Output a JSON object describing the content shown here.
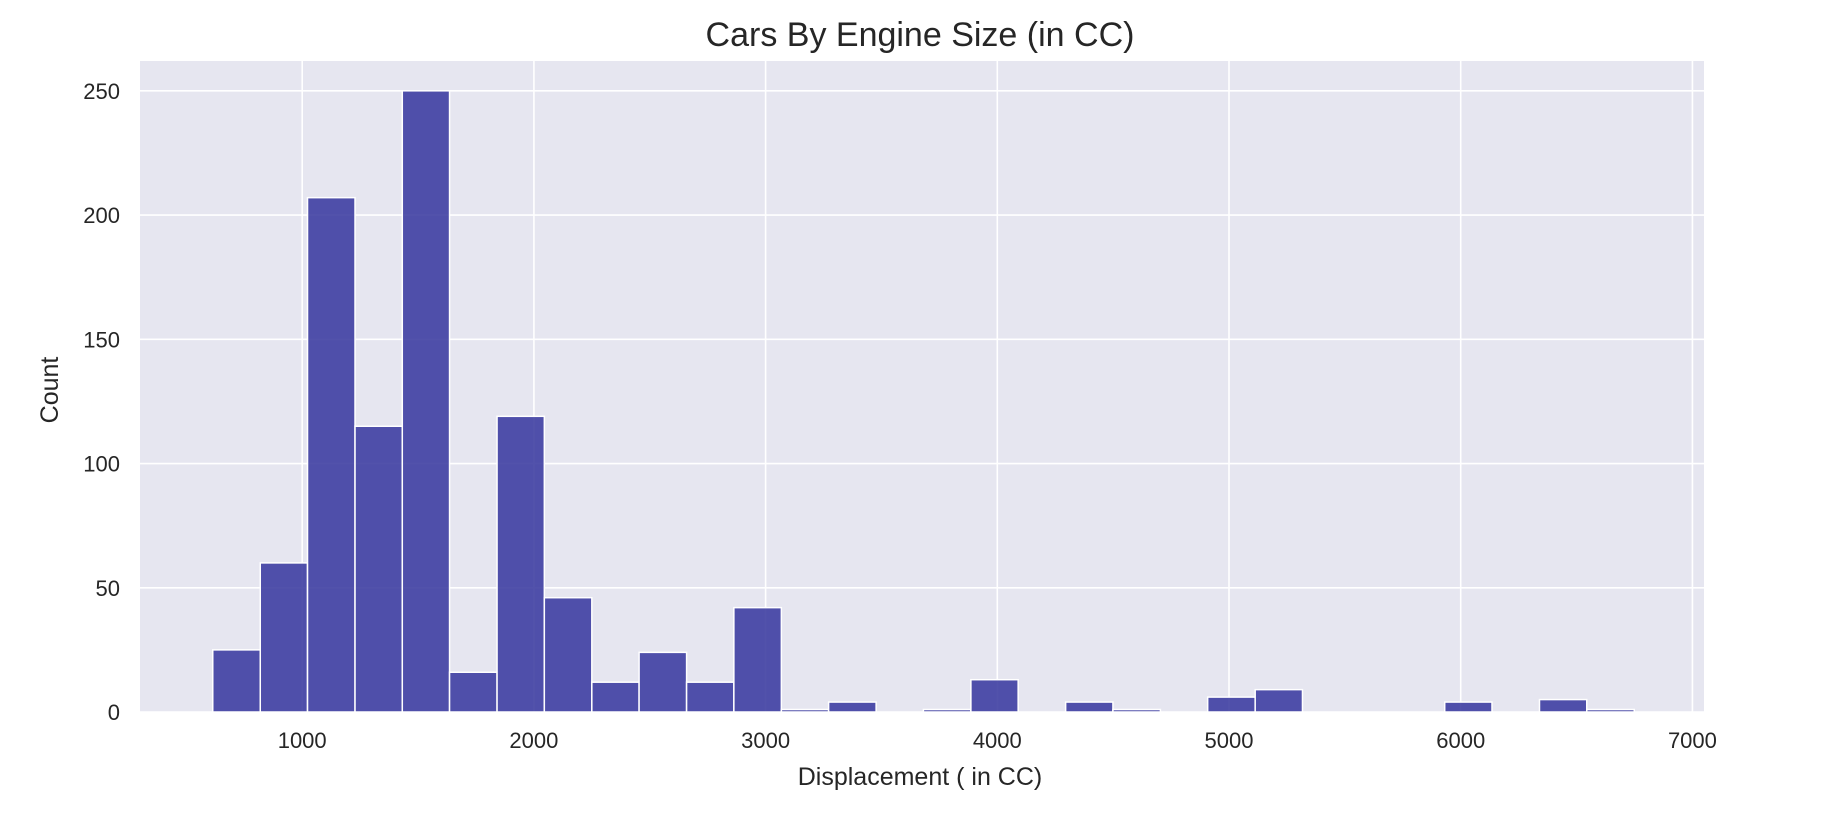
{
  "chart_data": {
    "type": "bar",
    "title": "Cars By Engine Size (in CC)",
    "xlabel": "Displacement ( in CC)",
    "ylabel": "Count",
    "xlim": [
      300,
      7050
    ],
    "ylim": [
      0,
      262
    ],
    "x_ticks": [
      1000,
      2000,
      3000,
      4000,
      5000,
      6000,
      7000
    ],
    "y_ticks": [
      0,
      50,
      100,
      150,
      200,
      250
    ],
    "grid": true,
    "legend": "none",
    "colors": {
      "bar_fill": "#3a3a9f",
      "bar_edge": "#ffffff",
      "plot_background": "#e6e6f0",
      "grid": "#ffffff"
    },
    "bins": [
      {
        "x0": 614,
        "x1": 819,
        "count": 25
      },
      {
        "x0": 819,
        "x1": 1023,
        "count": 60
      },
      {
        "x0": 1023,
        "x1": 1228,
        "count": 207
      },
      {
        "x0": 1228,
        "x1": 1432,
        "count": 115
      },
      {
        "x0": 1432,
        "x1": 1636,
        "count": 250
      },
      {
        "x0": 1636,
        "x1": 1841,
        "count": 16
      },
      {
        "x0": 1841,
        "x1": 2045,
        "count": 119
      },
      {
        "x0": 2045,
        "x1": 2250,
        "count": 46
      },
      {
        "x0": 2250,
        "x1": 2454,
        "count": 12
      },
      {
        "x0": 2454,
        "x1": 2659,
        "count": 24
      },
      {
        "x0": 2659,
        "x1": 2863,
        "count": 12
      },
      {
        "x0": 2863,
        "x1": 3068,
        "count": 42
      },
      {
        "x0": 3068,
        "x1": 3272,
        "count": 1
      },
      {
        "x0": 3272,
        "x1": 3477,
        "count": 4
      },
      {
        "x0": 3477,
        "x1": 3681,
        "count": 0
      },
      {
        "x0": 3681,
        "x1": 3886,
        "count": 1
      },
      {
        "x0": 3886,
        "x1": 4090,
        "count": 13
      },
      {
        "x0": 4090,
        "x1": 4295,
        "count": 0
      },
      {
        "x0": 4295,
        "x1": 4499,
        "count": 4
      },
      {
        "x0": 4499,
        "x1": 4704,
        "count": 1
      },
      {
        "x0": 4704,
        "x1": 4908,
        "count": 0
      },
      {
        "x0": 4908,
        "x1": 5113,
        "count": 6
      },
      {
        "x0": 5113,
        "x1": 5317,
        "count": 9
      },
      {
        "x0": 5317,
        "x1": 5522,
        "count": 0
      },
      {
        "x0": 5522,
        "x1": 5726,
        "count": 0
      },
      {
        "x0": 5726,
        "x1": 5931,
        "count": 0
      },
      {
        "x0": 5931,
        "x1": 6135,
        "count": 4
      },
      {
        "x0": 6135,
        "x1": 6340,
        "count": 0
      },
      {
        "x0": 6340,
        "x1": 6544,
        "count": 5
      },
      {
        "x0": 6544,
        "x1": 6749,
        "count": 1
      }
    ]
  }
}
